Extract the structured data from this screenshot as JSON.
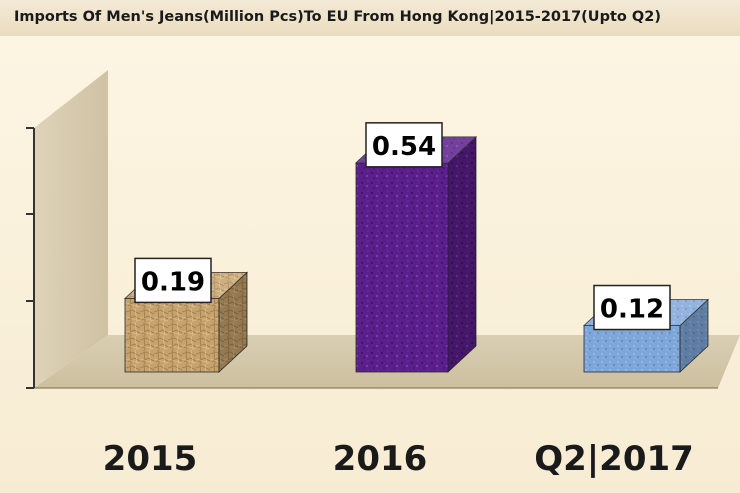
{
  "chart_data": {
    "type": "bar",
    "title": "Imports Of Men's Jeans(Million Pcs)To EU From Hong Kong|2015-2017(Upto Q2)",
    "categories": [
      "2015",
      "2016",
      "Q2|2017"
    ],
    "values": [
      0.19,
      0.54,
      0.12
    ],
    "data_labels": [
      "0.19",
      "0.54",
      "0.12"
    ],
    "xlabel": "",
    "ylabel": "",
    "ylim": [
      0,
      0.6
    ],
    "grid": false,
    "legend": "none",
    "colors": [
      "#c9a46b",
      "#5a1a8e",
      "#7aa3d6"
    ]
  }
}
